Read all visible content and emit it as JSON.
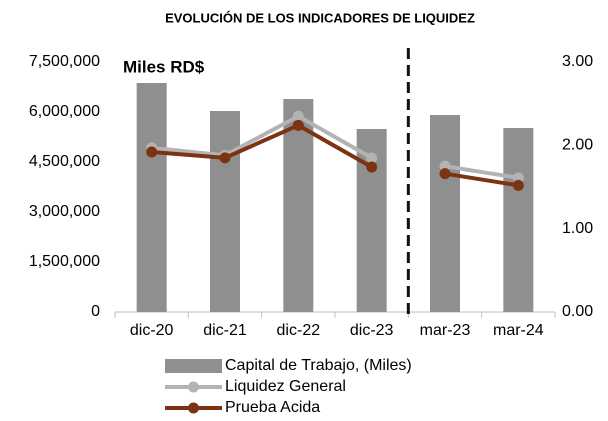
{
  "chart_data": {
    "type": "bar_line",
    "title": "EVOLUCIÓN DE LOS INDICADORES DE LIQUIDEZ",
    "annotation": "Miles RD$",
    "categories": [
      "dic-20",
      "dic-21",
      "dic-22",
      "dic-23",
      "mar-23",
      "mar-24"
    ],
    "divider_after": "dic-23",
    "series": [
      {
        "name": "Capital de Trabajo, (Miles)",
        "type": "bar",
        "color": "#8f8f8f",
        "values": [
          6870000,
          6030000,
          6390000,
          5490000,
          5910000,
          5520000
        ]
      },
      {
        "name": "Liquidez General",
        "type": "line",
        "axis": "y2",
        "color": "#b3b3b3",
        "values": [
          1.97,
          1.88,
          2.35,
          1.85,
          1.75,
          1.61
        ]
      },
      {
        "name": "Prueba Acida",
        "type": "line",
        "axis": "y2",
        "color": "#7b3312",
        "values": [
          1.92,
          1.85,
          2.24,
          1.74,
          1.66,
          1.52
        ]
      }
    ],
    "ylim": [
      0,
      7500000
    ],
    "yticks": [
      {
        "value": 0,
        "label": "0"
      },
      {
        "value": 1500000,
        "label": "1,500,000"
      },
      {
        "value": 3000000,
        "label": "3,000,000"
      },
      {
        "value": 4500000,
        "label": "4,500,000"
      },
      {
        "value": 6000000,
        "label": "6,000,000"
      },
      {
        "value": 7500000,
        "label": "7,500,000"
      }
    ],
    "y2lim": [
      0,
      3
    ],
    "y2ticks": [
      {
        "value": 0,
        "label": "0.00"
      },
      {
        "value": 1,
        "label": "1.00"
      },
      {
        "value": 2,
        "label": "2.00"
      },
      {
        "value": 3,
        "label": "3.00"
      }
    ],
    "legend": "bottom"
  }
}
